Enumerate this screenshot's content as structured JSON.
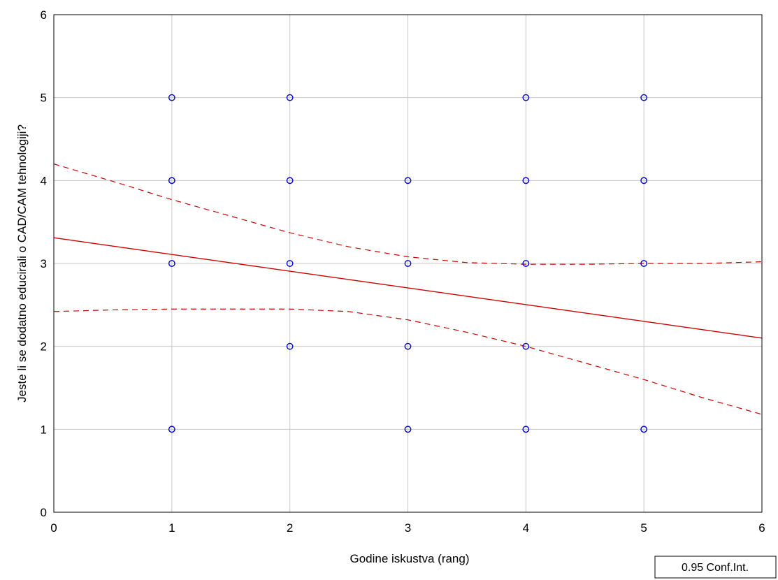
{
  "chart_data": {
    "type": "scatter",
    "xlabel": "Godine iskustva (rang)",
    "ylabel": "Jeste li se dodatno educirali o CAD/CAM tehnologiji?",
    "xlim": [
      0,
      6
    ],
    "ylim": [
      0,
      6
    ],
    "xticks": [
      "0",
      "1",
      "2",
      "3",
      "4",
      "5",
      "6"
    ],
    "yticks": [
      "0",
      "1",
      "2",
      "3",
      "4",
      "5",
      "6"
    ],
    "grid": true,
    "points": [
      {
        "x": 1,
        "y": 5
      },
      {
        "x": 1,
        "y": 4
      },
      {
        "x": 1,
        "y": 3
      },
      {
        "x": 1,
        "y": 1
      },
      {
        "x": 2,
        "y": 5
      },
      {
        "x": 2,
        "y": 4
      },
      {
        "x": 2,
        "y": 3
      },
      {
        "x": 2,
        "y": 2
      },
      {
        "x": 3,
        "y": 4
      },
      {
        "x": 3,
        "y": 3
      },
      {
        "x": 3,
        "y": 2
      },
      {
        "x": 3,
        "y": 1
      },
      {
        "x": 4,
        "y": 5
      },
      {
        "x": 4,
        "y": 4
      },
      {
        "x": 4,
        "y": 3
      },
      {
        "x": 4,
        "y": 2
      },
      {
        "x": 4,
        "y": 1
      },
      {
        "x": 5,
        "y": 5
      },
      {
        "x": 5,
        "y": 4
      },
      {
        "x": 5,
        "y": 3
      },
      {
        "x": 5,
        "y": 1
      }
    ],
    "regression_line": {
      "x": [
        0,
        6
      ],
      "y": [
        3.31,
        2.1
      ]
    },
    "ci_upper": {
      "x": [
        0,
        0.5,
        1,
        1.5,
        2,
        2.5,
        3,
        3.5,
        4,
        4.5,
        5,
        5.5,
        6
      ],
      "y": [
        4.2,
        3.99,
        3.77,
        3.57,
        3.37,
        3.2,
        3.08,
        3.01,
        2.99,
        2.99,
        3.0,
        3.0,
        3.02
      ]
    },
    "ci_lower": {
      "x": [
        0,
        0.5,
        1,
        1.5,
        2,
        2.5,
        3,
        3.5,
        4,
        4.5,
        5,
        5.5,
        6
      ],
      "y": [
        2.42,
        2.44,
        2.45,
        2.45,
        2.45,
        2.42,
        2.32,
        2.17,
        2.0,
        1.8,
        1.6,
        1.38,
        1.18
      ]
    },
    "legend": "0.95 Conf.Int.",
    "legend_position": "bottom-right",
    "colors": {
      "points": "#0000cc",
      "regression": "#cc0000",
      "grid": "#c8c8c8",
      "axes": "#000000"
    }
  }
}
